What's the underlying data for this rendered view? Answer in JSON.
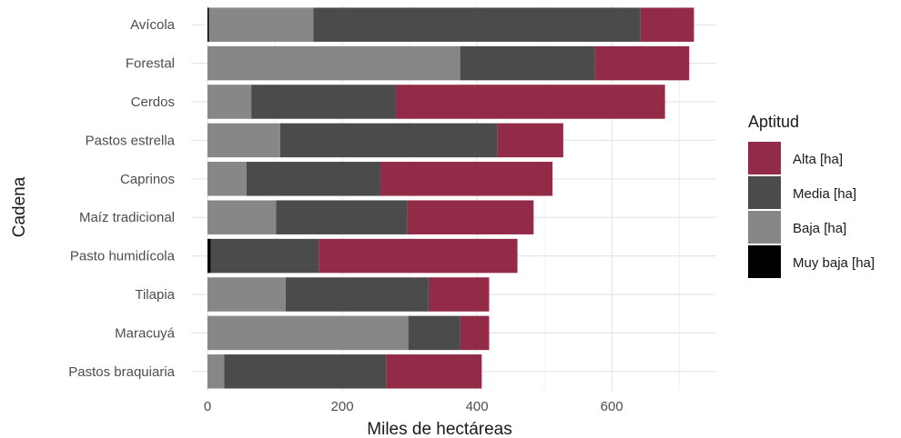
{
  "chart_data": {
    "type": "bar",
    "orientation": "horizontal",
    "stacked": true,
    "title": "",
    "xlabel": "Miles de hectáreas",
    "ylabel": "Cadena",
    "xlim": [
      -10,
      755
    ],
    "x_ticks": [
      0,
      200,
      400,
      600
    ],
    "grid": true,
    "legend_position": "right",
    "categories": [
      "Avícola",
      "Forestal",
      "Cerdos",
      "Pastos estrella",
      "Caprinos",
      "Maíz tradicional",
      "Pasto humidícola",
      "Tilapia",
      "Maracuyá",
      "Pastos braquiaria"
    ],
    "legend_title": "Aptitud",
    "series": [
      {
        "name": "Muy baja [ha]",
        "color": "#000000",
        "values": [
          2,
          0,
          0,
          0,
          0,
          0,
          5,
          0,
          0,
          0
        ]
      },
      {
        "name": "Baja [ha]",
        "color": "#878787",
        "values": [
          155,
          375,
          65,
          108,
          58,
          102,
          0,
          116,
          298,
          25
        ]
      },
      {
        "name": "Media [ha]",
        "color": "#4b4b4b",
        "values": [
          485,
          200,
          214,
          322,
          198,
          194,
          160,
          212,
          77,
          240
        ]
      },
      {
        "name": "Alta [ha]",
        "color": "#922b47",
        "values": [
          80,
          140,
          400,
          98,
          256,
          188,
          295,
          90,
          43,
          142
        ]
      }
    ],
    "legend_order": [
      "Alta [ha]",
      "Media [ha]",
      "Baja [ha]",
      "Muy baja [ha]"
    ]
  }
}
